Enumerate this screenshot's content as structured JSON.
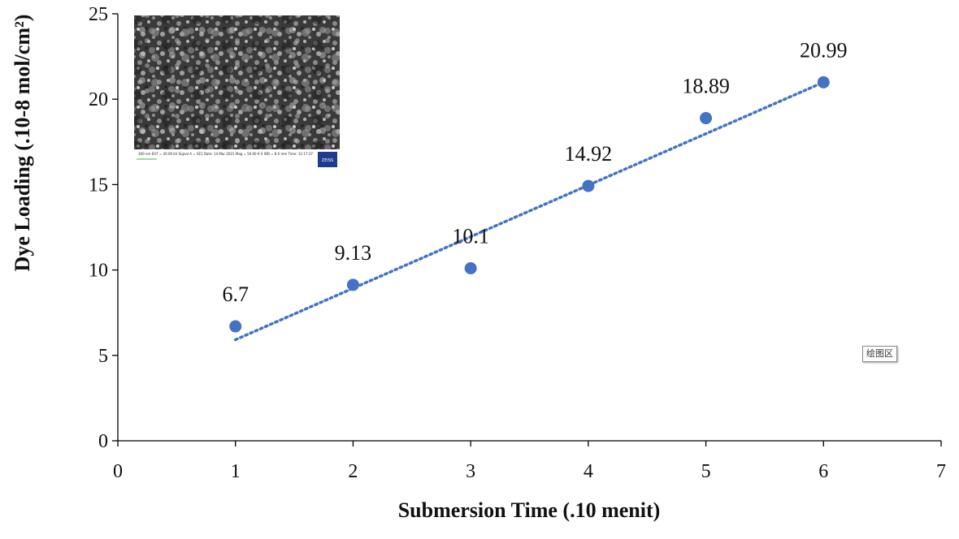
{
  "chart_data": {
    "type": "scatter",
    "xlabel": "Submersion Time (.10 menit)",
    "ylabel": "Dye Loading (.10-8 mol/cm²)",
    "xlim": [
      0,
      7
    ],
    "ylim": [
      0,
      25
    ],
    "x_ticks": [
      0,
      1,
      2,
      3,
      4,
      5,
      6,
      7
    ],
    "y_ticks": [
      0,
      5,
      10,
      15,
      20,
      25
    ],
    "grid": false,
    "series": [
      {
        "x": [
          1,
          2,
          3,
          4,
          5,
          6
        ],
        "y": [
          6.7,
          9.13,
          10.1,
          14.92,
          18.89,
          20.99
        ],
        "data_labels": [
          "6.7",
          "9.13",
          "10.1",
          "14.92",
          "18.89",
          "20.99"
        ],
        "color": "#4472C4"
      }
    ],
    "trendline": {
      "type": "linear",
      "style": "dotted",
      "color": "#4472C4"
    },
    "inset_image": {
      "caption_text": "300 nm   EHT = 20.00 kV   Signal A = SE1   Date: 14 Mar 2021   Mag = 50.00 K X   WD = 8.0 mm   Time: 11:17:37",
      "logo": "ZEISS"
    }
  },
  "ui": {
    "tooltip_label": "绘图区"
  }
}
